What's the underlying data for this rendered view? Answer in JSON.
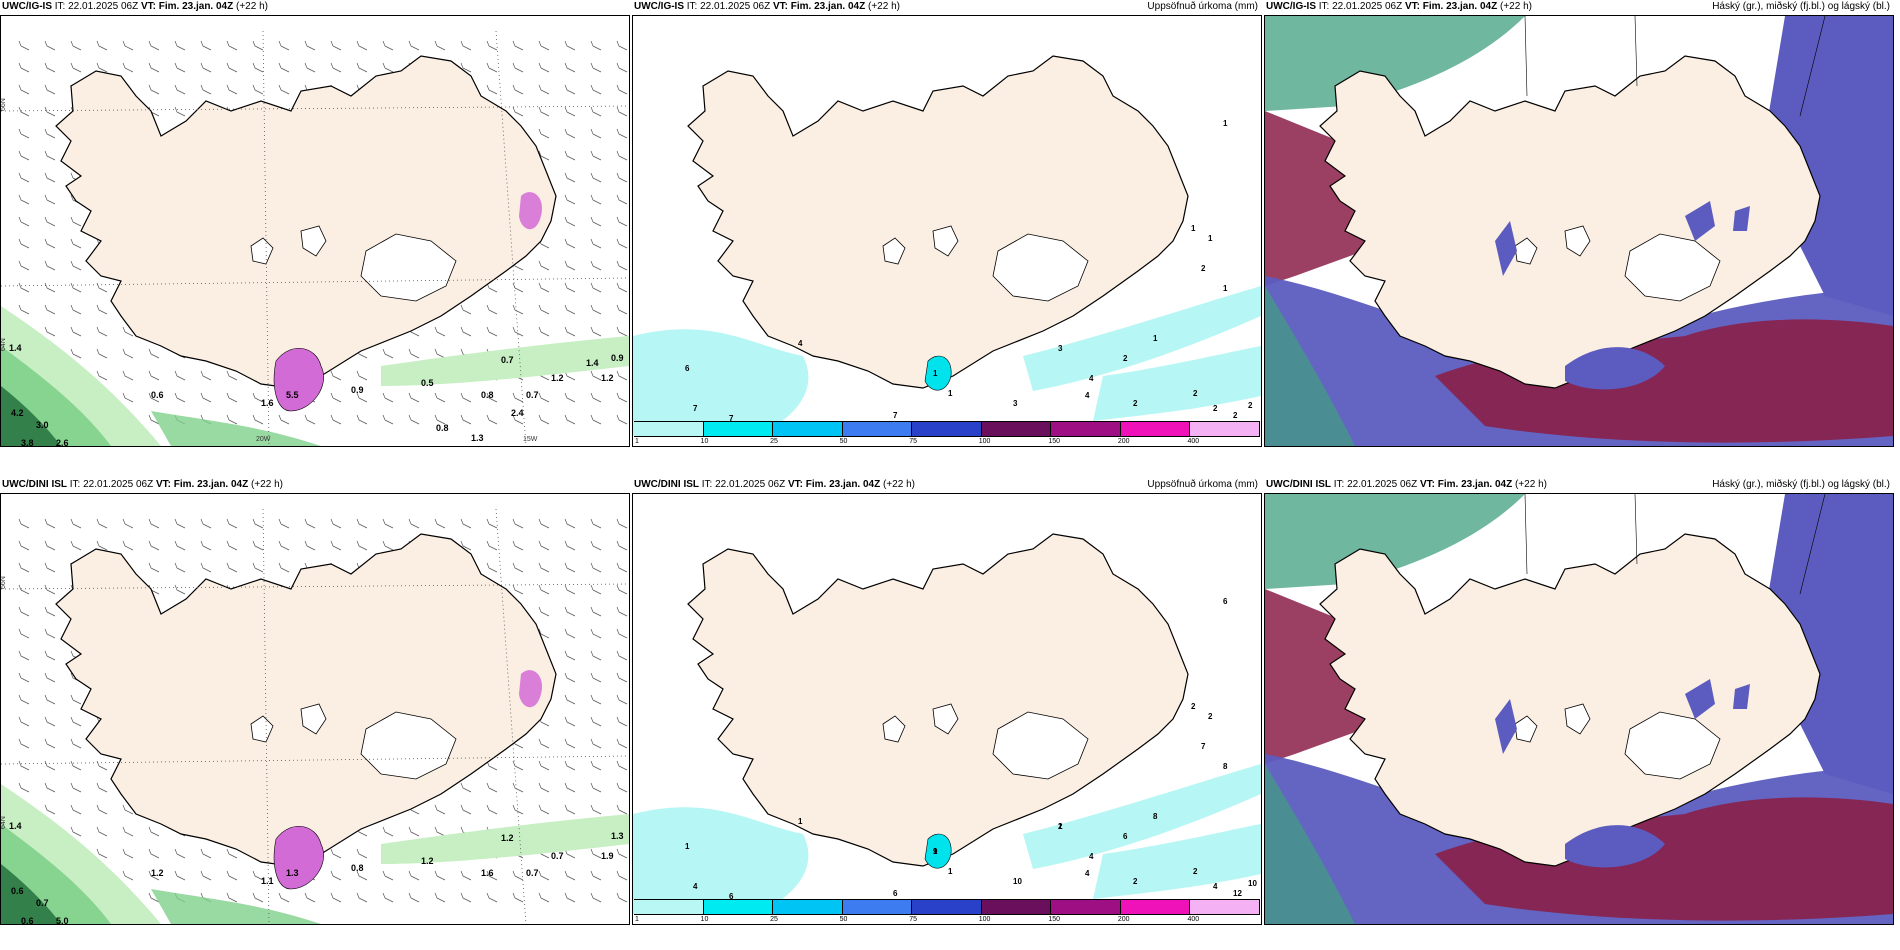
{
  "colors": {
    "land": "#fbeee2",
    "coast": "#000000",
    "precip_light": "#b6f6f4",
    "precip_med": "#00e2ec",
    "green_light": "#c7efc3",
    "green_mid": "#7fcf8b",
    "green_dark": "#1e6b3a",
    "magenta": "#d36bd6",
    "cloud_high": "#3f9f7f",
    "cloud_mid": "#8a1f48",
    "cloud_low": "#5c5cc0"
  },
  "panels": [
    {
      "id": "ig-wind",
      "model": "UWC/IG-IS",
      "init": "IT: 22.01.2025 06Z",
      "vt_label": "VT:",
      "vt": "Fim. 23.jan. 04Z",
      "lead": "(+22 h)",
      "right_title": "",
      "values": [
        "1.4",
        "4.2",
        "3.0",
        "3.8",
        "2.6",
        "0.6",
        "1.6",
        "5.5",
        "0.9",
        "0.5",
        "0.7",
        "0.8",
        "0.7",
        "1.2",
        "0.9",
        "1.2",
        "1.4",
        "0.8",
        "1.3",
        "2.4"
      ],
      "lon_labels": [
        "20W",
        "15W"
      ],
      "lat_labels": [
        "66N",
        "64N"
      ]
    },
    {
      "id": "ig-precip",
      "model": "UWC/IG-IS",
      "init": "IT: 22.01.2025 06Z",
      "vt_label": "VT:",
      "vt": "Fim. 23.jan. 04Z",
      "lead": "(+22 h)",
      "right_title": "Uppsöfnuð úrkoma (mm)",
      "values": [
        "1",
        "3",
        "1",
        "1",
        "1",
        "2",
        "1",
        "2",
        "1",
        "4",
        "6",
        "7",
        "7",
        "7",
        "1",
        "3",
        "4",
        "4",
        "2",
        "2",
        "2",
        "2",
        "2",
        "2"
      ],
      "colorbar_labels": [
        "1",
        "10",
        "25",
        "50",
        "75",
        "100",
        "150",
        "200",
        "400"
      ],
      "colorbar_colors": [
        "#b9f7f5",
        "#00eaf1",
        "#00c4f3",
        "#3c7cf0",
        "#2841c8",
        "#6a0f5c",
        "#9e0f83",
        "#ee12b8",
        "#f4b2f4"
      ]
    },
    {
      "id": "ig-cloud",
      "model": "UWC/IG-IS",
      "init": "IT: 22.01.2025 06Z",
      "vt_label": "VT:",
      "vt": "Fim. 23.jan. 04Z",
      "lead": "(+22 h)",
      "right_title": "Háský (gr.), miðský (fj.bl.) og lágský (bl.)"
    },
    {
      "id": "dini-wind",
      "model": "UWC/DINI ISL",
      "init": "IT: 22.01.2025 06Z",
      "vt_label": "VT:",
      "vt": "Fim. 23.jan. 04Z",
      "lead": "(+22 h)",
      "right_title": "",
      "values": [
        "1.4",
        "0.6",
        "0.7",
        "0.6",
        "5.0",
        "1.2",
        "1.1",
        "1.3",
        "0.8",
        "1.2",
        "1.2",
        "1.6",
        "0.7",
        "0.7",
        "1.3",
        "1.9"
      ],
      "lat_labels": [
        "66N",
        "64N"
      ]
    },
    {
      "id": "dini-precip",
      "model": "UWC/DINI ISL",
      "init": "IT: 22.01.2025 06Z",
      "vt_label": "VT:",
      "vt": "Fim. 23.jan. 04Z",
      "lead": "(+22 h)",
      "right_title": "Uppsöfnuð úrkoma (mm)",
      "values": [
        "1",
        "1",
        "6",
        "2",
        "2",
        "7",
        "8",
        "6",
        "8",
        "1",
        "1",
        "4",
        "6",
        "6",
        "1",
        "10",
        "4",
        "4",
        "2",
        "2",
        "4",
        "12",
        "10",
        "9",
        "9",
        "2"
      ],
      "colorbar_labels": [
        "1",
        "10",
        "25",
        "50",
        "75",
        "100",
        "150",
        "200",
        "400"
      ],
      "colorbar_colors": [
        "#b9f7f5",
        "#00eaf1",
        "#00c4f3",
        "#3c7cf0",
        "#2841c8",
        "#6a0f5c",
        "#9e0f83",
        "#ee12b8",
        "#f4b2f4"
      ]
    },
    {
      "id": "dini-cloud",
      "model": "UWC/DINI ISL",
      "init": "IT: 22.01.2025 06Z",
      "vt_label": "VT:",
      "vt": "Fim. 23.jan. 04Z",
      "lead": "(+22 h)",
      "right_title": "Háský (gr.), miðský (fj.bl.) og lágský (bl.)"
    }
  ]
}
